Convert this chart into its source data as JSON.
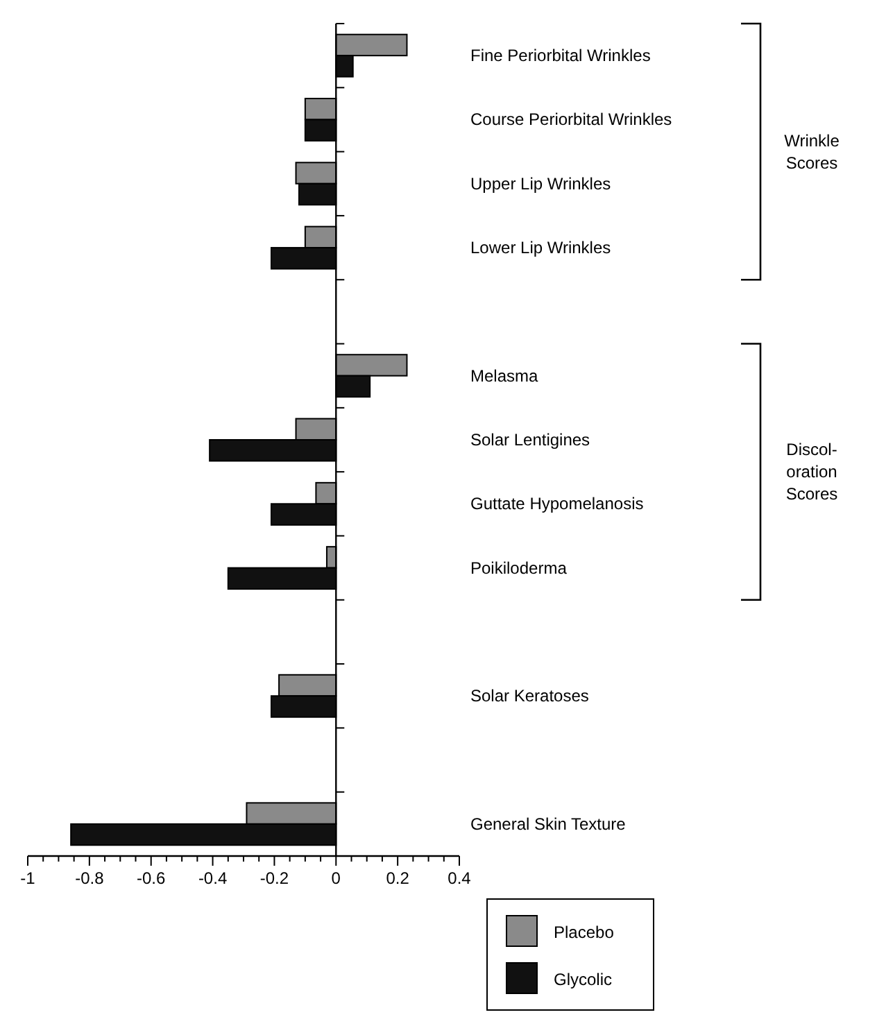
{
  "chart_data": {
    "type": "bar",
    "orientation": "horizontal",
    "categories": [
      "Fine Periorbital Wrinkles",
      "Course Periorbital Wrinkles",
      "Upper Lip Wrinkles",
      "Lower Lip Wrinkles",
      null,
      "Melasma",
      "Solar Lentigines",
      "Guttate Hypomelanosis",
      "Poikiloderma",
      null,
      "Solar Keratoses",
      null,
      "General Skin Texture"
    ],
    "series": [
      {
        "name": "Placebo",
        "color": "#8a8a8a",
        "values": [
          0.23,
          -0.1,
          -0.13,
          -0.1,
          null,
          0.23,
          -0.13,
          -0.065,
          -0.03,
          null,
          -0.185,
          null,
          -0.29
        ]
      },
      {
        "name": "Glycolic",
        "color": "#111111",
        "values": [
          0.055,
          -0.1,
          -0.12,
          -0.21,
          null,
          0.11,
          -0.41,
          -0.21,
          -0.35,
          null,
          -0.21,
          null,
          -0.86
        ]
      }
    ],
    "xlim": [
      -1,
      0.4
    ],
    "xticks": [
      -1,
      {
        "value": -0.95,
        "label": null
      },
      {
        "value": -0.9,
        "label": null
      },
      {
        "value": -0.85,
        "label": null
      },
      -0.8,
      {
        "value": -0.75,
        "label": null
      },
      {
        "value": -0.7,
        "label": null
      },
      {
        "value": -0.65,
        "label": null
      },
      -0.6,
      {
        "value": -0.55,
        "label": null
      },
      {
        "value": -0.5,
        "label": null
      },
      {
        "value": -0.45,
        "label": null
      },
      -0.4,
      {
        "value": -0.35,
        "label": null
      },
      {
        "value": -0.3,
        "label": null
      },
      {
        "value": -0.25,
        "label": null
      },
      -0.2,
      {
        "value": -0.15,
        "label": null
      },
      {
        "value": -0.1,
        "label": null
      },
      {
        "value": -0.05,
        "label": null
      },
      0,
      {
        "value": 0.05,
        "label": null
      },
      {
        "value": 0.1,
        "label": null
      },
      {
        "value": 0.15,
        "label": null
      },
      0.2,
      {
        "value": 0.25,
        "label": null
      },
      {
        "value": 0.3,
        "label": null
      },
      {
        "value": 0.35,
        "label": null
      },
      0.4
    ],
    "annotations": [
      "Wrinkle Scores",
      "Discol-\noration\nScores"
    ],
    "legend": "bottom"
  }
}
